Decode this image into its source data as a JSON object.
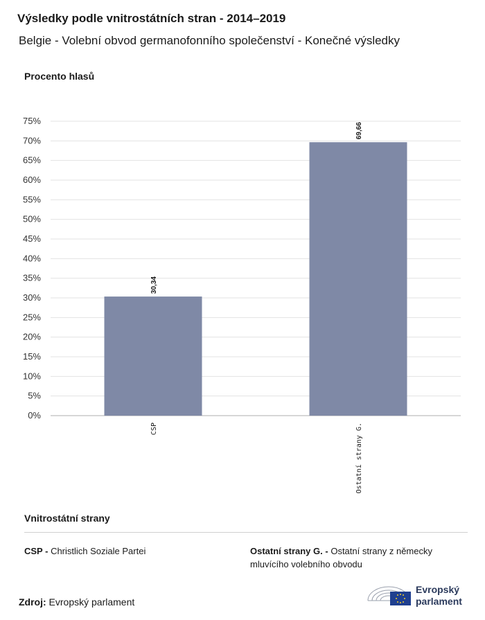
{
  "title": "Výsledky podle vnitrostátních stran - 2014–2019",
  "subtitle": "Belgie - Volební obvod germanofonního společenství - Konečné výsledky",
  "chart_data": {
    "type": "bar",
    "ylabel": "Procento hlasů",
    "categories": [
      "CSP",
      "Ostatní strany G."
    ],
    "values": [
      30.34,
      69.66
    ],
    "value_labels": [
      "30,34",
      "69,66"
    ],
    "ylim": [
      0,
      75
    ],
    "yticks": [
      "0%",
      "5%",
      "10%",
      "15%",
      "20%",
      "25%",
      "30%",
      "35%",
      "40%",
      "45%",
      "50%",
      "55%",
      "60%",
      "65%",
      "70%",
      "75%"
    ],
    "bar_color": "#7f89a6",
    "grid": true
  },
  "legend": {
    "title": "Vnitrostátní strany",
    "items": [
      {
        "abbr": "CSP -",
        "name": "Christlich Soziale Partei"
      },
      {
        "abbr": "Ostatní strany G. -",
        "name": "Ostatní strany z německy mluvícího volebního obvodu"
      }
    ]
  },
  "source": {
    "label": "Zdroj:",
    "value": "Evropský parlament"
  },
  "logo": {
    "line1": "Evropský",
    "line2": "parlament"
  }
}
